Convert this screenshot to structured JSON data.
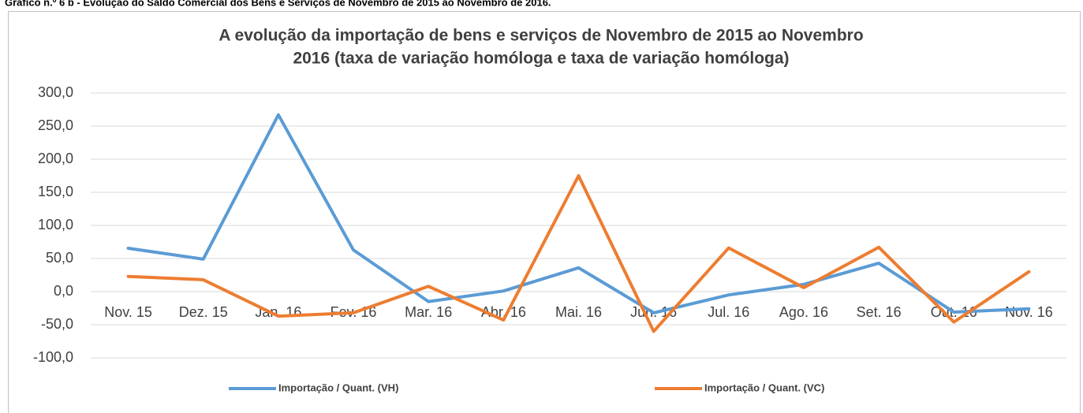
{
  "caption": "Gráfico n.º 6 b - Evolução do Saldo Comercial dos Bens e Serviços de Novembro de 2015 ao Novembro de 2016.",
  "chart_data": {
    "type": "line",
    "title": [
      "A evolução da importação de bens e serviços de Novembro de 2015 ao Novembro",
      "2016 (taxa de variação homóloga e taxa de variação homóloga)"
    ],
    "categories": [
      "Nov. 15",
      "Dez. 15",
      "Jan. 16",
      "Fev. 16",
      "Mar. 16",
      "Abr. 16",
      "Mai. 16",
      "Jun. 16",
      "Jul. 16",
      "Ago. 16",
      "Set. 16",
      "Out. 16",
      "Nov. 16"
    ],
    "series": [
      {
        "name": "Importação / Quant. (VH)",
        "color": "#5b9bd5",
        "values": [
          65.5,
          49,
          267,
          63,
          -15,
          1,
          36,
          -32,
          -5,
          11,
          43,
          -31,
          -26
        ]
      },
      {
        "name": "Importação / Quant. (VC)",
        "color": "#ed7d31",
        "values": [
          23,
          18,
          -37,
          -32,
          8,
          -43,
          175,
          -60,
          66,
          6,
          67,
          -46,
          30
        ]
      }
    ],
    "ylim": [
      -100,
      300
    ],
    "yticks": [
      {
        "value": -100,
        "label": "-100,0"
      },
      {
        "value": -50,
        "label": "-50,0"
      },
      {
        "value": 0,
        "label": "0,0"
      },
      {
        "value": 50,
        "label": "50,0"
      },
      {
        "value": 100,
        "label": "100,0"
      },
      {
        "value": 150,
        "label": "150,0"
      },
      {
        "value": 200,
        "label": "200,0"
      },
      {
        "value": 250,
        "label": "250,0"
      },
      {
        "value": 300,
        "label": "300,0"
      }
    ],
    "grid": true,
    "legend": "bottom"
  }
}
